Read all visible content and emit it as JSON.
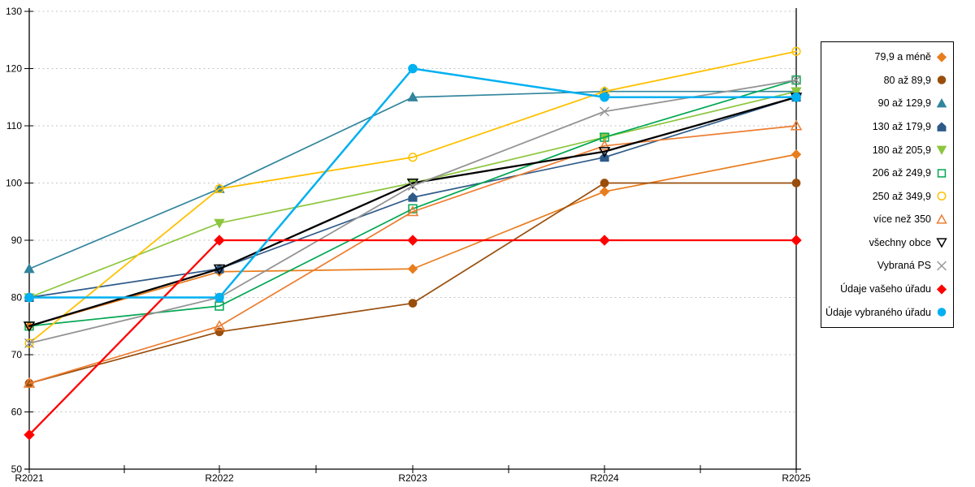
{
  "chart_data": {
    "type": "line",
    "title": "",
    "xlabel": "",
    "ylabel": "",
    "categories": [
      "R2021",
      "R2022",
      "R2023",
      "R2024",
      "R2025"
    ],
    "ylim": [
      50,
      130
    ],
    "ytick_labels": [
      "50",
      "60",
      "70",
      "80",
      "90",
      "100",
      "110",
      "120",
      "130"
    ],
    "ytick_values": [
      50,
      60,
      70,
      80,
      90,
      100,
      110,
      120,
      130
    ],
    "grid": "horizontal-dotted",
    "grid_color": "#c6c6c6",
    "axis_color": "#000000",
    "legend_position": "right",
    "series": [
      {
        "name": "79,9 a méně",
        "color": "#e87d1e",
        "marker": "diamond",
        "fill": "solid",
        "line_width": 1.7,
        "marker_size": 5.5,
        "values": [
          75,
          84.5,
          85,
          98.5,
          105
        ]
      },
      {
        "name": "80 až 89,9",
        "color": "#9a4e0c",
        "marker": "circle",
        "fill": "solid",
        "line_width": 1.7,
        "marker_size": 5.5,
        "values": [
          65,
          74,
          79,
          100,
          100
        ]
      },
      {
        "name": "90 až 129,9",
        "color": "#31859c",
        "marker": "triangle-up",
        "fill": "solid",
        "line_width": 1.7,
        "marker_size": 5.8,
        "values": [
          85,
          99,
          115,
          116,
          116
        ]
      },
      {
        "name": "130 až 179,9",
        "color": "#2e5a88",
        "marker": "pentagon",
        "fill": "solid",
        "line_width": 1.7,
        "marker_size": 5.5,
        "values": [
          80,
          85,
          97.5,
          104.5,
          115
        ]
      },
      {
        "name": "180 až 205,9",
        "color": "#8cc63e",
        "marker": "triangle-down",
        "fill": "solid",
        "line_width": 1.7,
        "marker_size": 5.8,
        "values": [
          80,
          93,
          100,
          108,
          116
        ]
      },
      {
        "name": "206 až 249,9",
        "color": "#00a651",
        "marker": "square",
        "fill": "open",
        "line_width": 1.7,
        "marker_size": 6.0,
        "values": [
          75,
          78.5,
          95.5,
          108,
          118
        ]
      },
      {
        "name": "250 až 349,9",
        "color": "#ffc000",
        "marker": "circle",
        "fill": "open",
        "line_width": 1.8,
        "marker_size": 5.5,
        "values": [
          72,
          99,
          104.5,
          116,
          123
        ]
      },
      {
        "name": "více než 350",
        "color": "#ed7d31",
        "marker": "triangle-up",
        "fill": "open",
        "line_width": 1.7,
        "marker_size": 6.0,
        "values": [
          65,
          75,
          95,
          106.5,
          110
        ]
      },
      {
        "name": "všechny obce",
        "color": "#000000",
        "marker": "triangle-down",
        "fill": "open",
        "line_width": 2.3,
        "marker_size": 6.0,
        "values": [
          75,
          85,
          100,
          105.5,
          115
        ]
      },
      {
        "name": "Vybraná PS",
        "color": "#949494",
        "marker": "x",
        "fill": "open",
        "line_width": 1.8,
        "marker_size": 5.5,
        "values": [
          72,
          80,
          99.5,
          112.5,
          118
        ]
      },
      {
        "name": "Údaje vašeho úřadu",
        "color": "#ff0000",
        "marker": "diamond",
        "fill": "solid",
        "line_width": 2.3,
        "marker_size": 6.0,
        "values": [
          56,
          90,
          90,
          90,
          90
        ]
      },
      {
        "name": "Údaje vybraného úřadu",
        "color": "#00b0f0",
        "marker": "circle",
        "fill": "solid",
        "line_width": 2.5,
        "marker_size": 6.0,
        "values": [
          80,
          80,
          120,
          115,
          115
        ]
      }
    ]
  }
}
